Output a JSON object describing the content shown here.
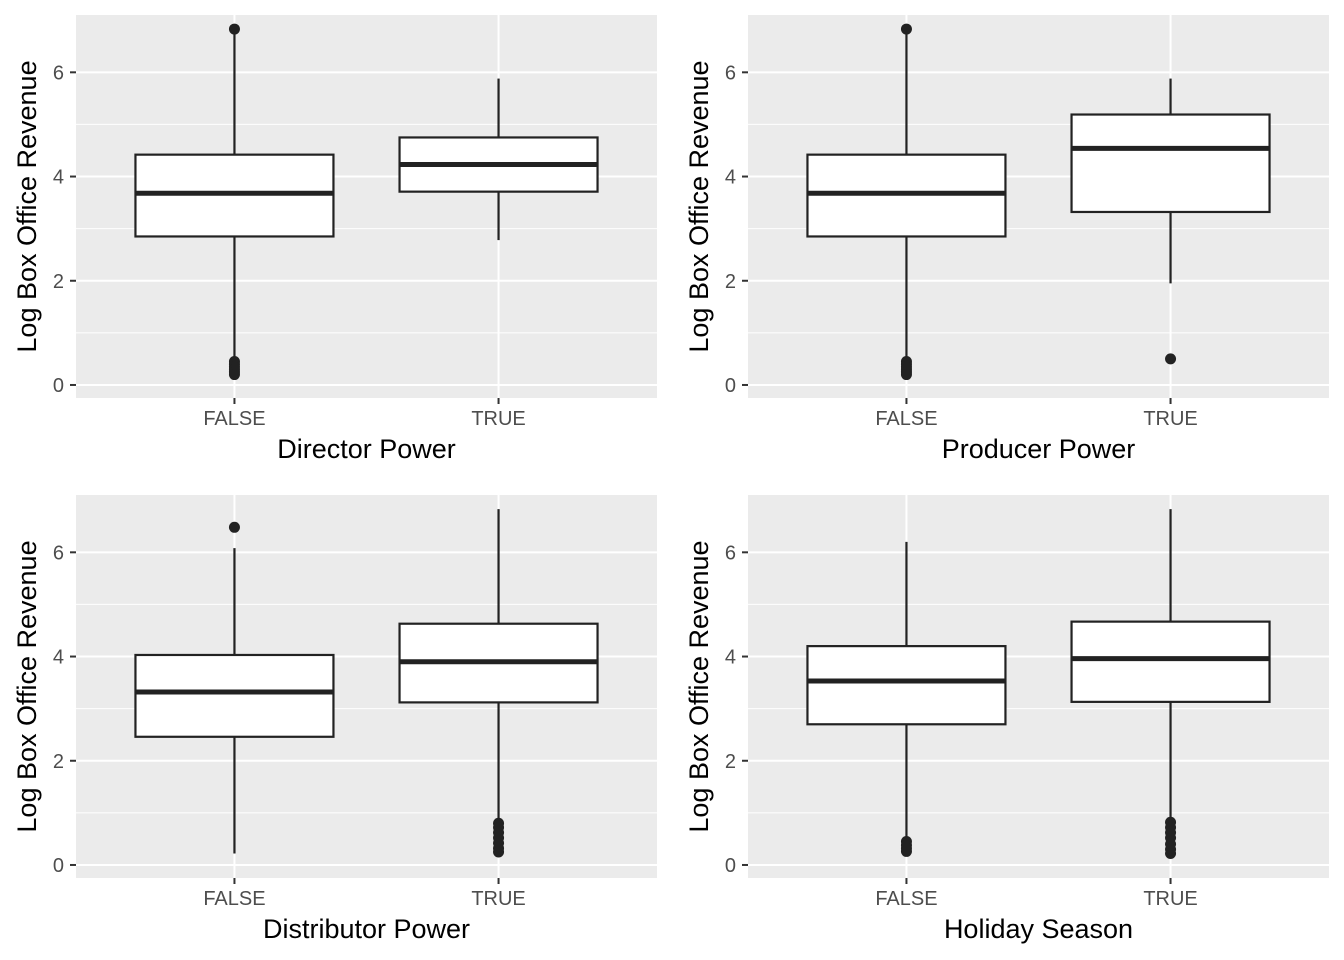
{
  "chart_data": [
    {
      "type": "box",
      "xlabel": "Director Power",
      "ylabel": "Log Box Office Revenue",
      "categories": [
        "FALSE",
        "TRUE"
      ],
      "ylim": [
        -0.25,
        7.1
      ],
      "yticks": [
        0,
        2,
        4,
        6
      ],
      "boxes": [
        {
          "category": "FALSE",
          "lower_whisker": 0.5,
          "q1": 2.85,
          "median": 3.68,
          "q3": 4.42,
          "upper_whisker": 6.75,
          "outliers": [
            6.83,
            0.45,
            0.4,
            0.35,
            0.3,
            0.25,
            0.2
          ]
        },
        {
          "category": "TRUE",
          "lower_whisker": 2.78,
          "q1": 3.71,
          "median": 4.23,
          "q3": 4.75,
          "upper_whisker": 5.88,
          "outliers": []
        }
      ]
    },
    {
      "type": "box",
      "xlabel": "Producer Power",
      "ylabel": "Log Box Office Revenue",
      "categories": [
        "FALSE",
        "TRUE"
      ],
      "ylim": [
        -0.25,
        7.1
      ],
      "yticks": [
        0,
        2,
        4,
        6
      ],
      "boxes": [
        {
          "category": "FALSE",
          "lower_whisker": 0.5,
          "q1": 2.85,
          "median": 3.68,
          "q3": 4.42,
          "upper_whisker": 6.75,
          "outliers": [
            6.83,
            0.45,
            0.4,
            0.35,
            0.3,
            0.25,
            0.2
          ]
        },
        {
          "category": "TRUE",
          "lower_whisker": 1.95,
          "q1": 3.32,
          "median": 4.54,
          "q3": 5.19,
          "upper_whisker": 5.88,
          "outliers": [
            0.5
          ]
        }
      ]
    },
    {
      "type": "box",
      "xlabel": "Distributor Power",
      "ylabel": "Log Box Office Revenue",
      "categories": [
        "FALSE",
        "TRUE"
      ],
      "ylim": [
        -0.25,
        7.1
      ],
      "yticks": [
        0,
        2,
        4,
        6
      ],
      "boxes": [
        {
          "category": "FALSE",
          "lower_whisker": 0.22,
          "q1": 2.46,
          "median": 3.32,
          "q3": 4.03,
          "upper_whisker": 6.08,
          "outliers": [
            6.48
          ]
        },
        {
          "category": "TRUE",
          "lower_whisker": 0.9,
          "q1": 3.12,
          "median": 3.9,
          "q3": 4.63,
          "upper_whisker": 6.83,
          "outliers": [
            0.8,
            0.72,
            0.62,
            0.52,
            0.42,
            0.32,
            0.25
          ]
        }
      ]
    },
    {
      "type": "box",
      "xlabel": "Holiday Season",
      "ylabel": "Log Box Office Revenue",
      "categories": [
        "FALSE",
        "TRUE"
      ],
      "ylim": [
        -0.25,
        7.1
      ],
      "yticks": [
        0,
        2,
        4,
        6
      ],
      "boxes": [
        {
          "category": "FALSE",
          "lower_whisker": 0.5,
          "q1": 2.7,
          "median": 3.53,
          "q3": 4.2,
          "upper_whisker": 6.2,
          "outliers": [
            0.45,
            0.38,
            0.32,
            0.26
          ]
        },
        {
          "category": "TRUE",
          "lower_whisker": 0.9,
          "q1": 3.13,
          "median": 3.96,
          "q3": 4.67,
          "upper_whisker": 6.83,
          "outliers": [
            0.82,
            0.72,
            0.62,
            0.52,
            0.4,
            0.3,
            0.22
          ]
        }
      ]
    }
  ],
  "colors": {
    "panel_background": "#ebebeb",
    "grid": "#ffffff",
    "box_fill": "#ffffff",
    "box_line": "#222222",
    "tick_label": "#4d4d4d",
    "axis_title": "#000000"
  }
}
